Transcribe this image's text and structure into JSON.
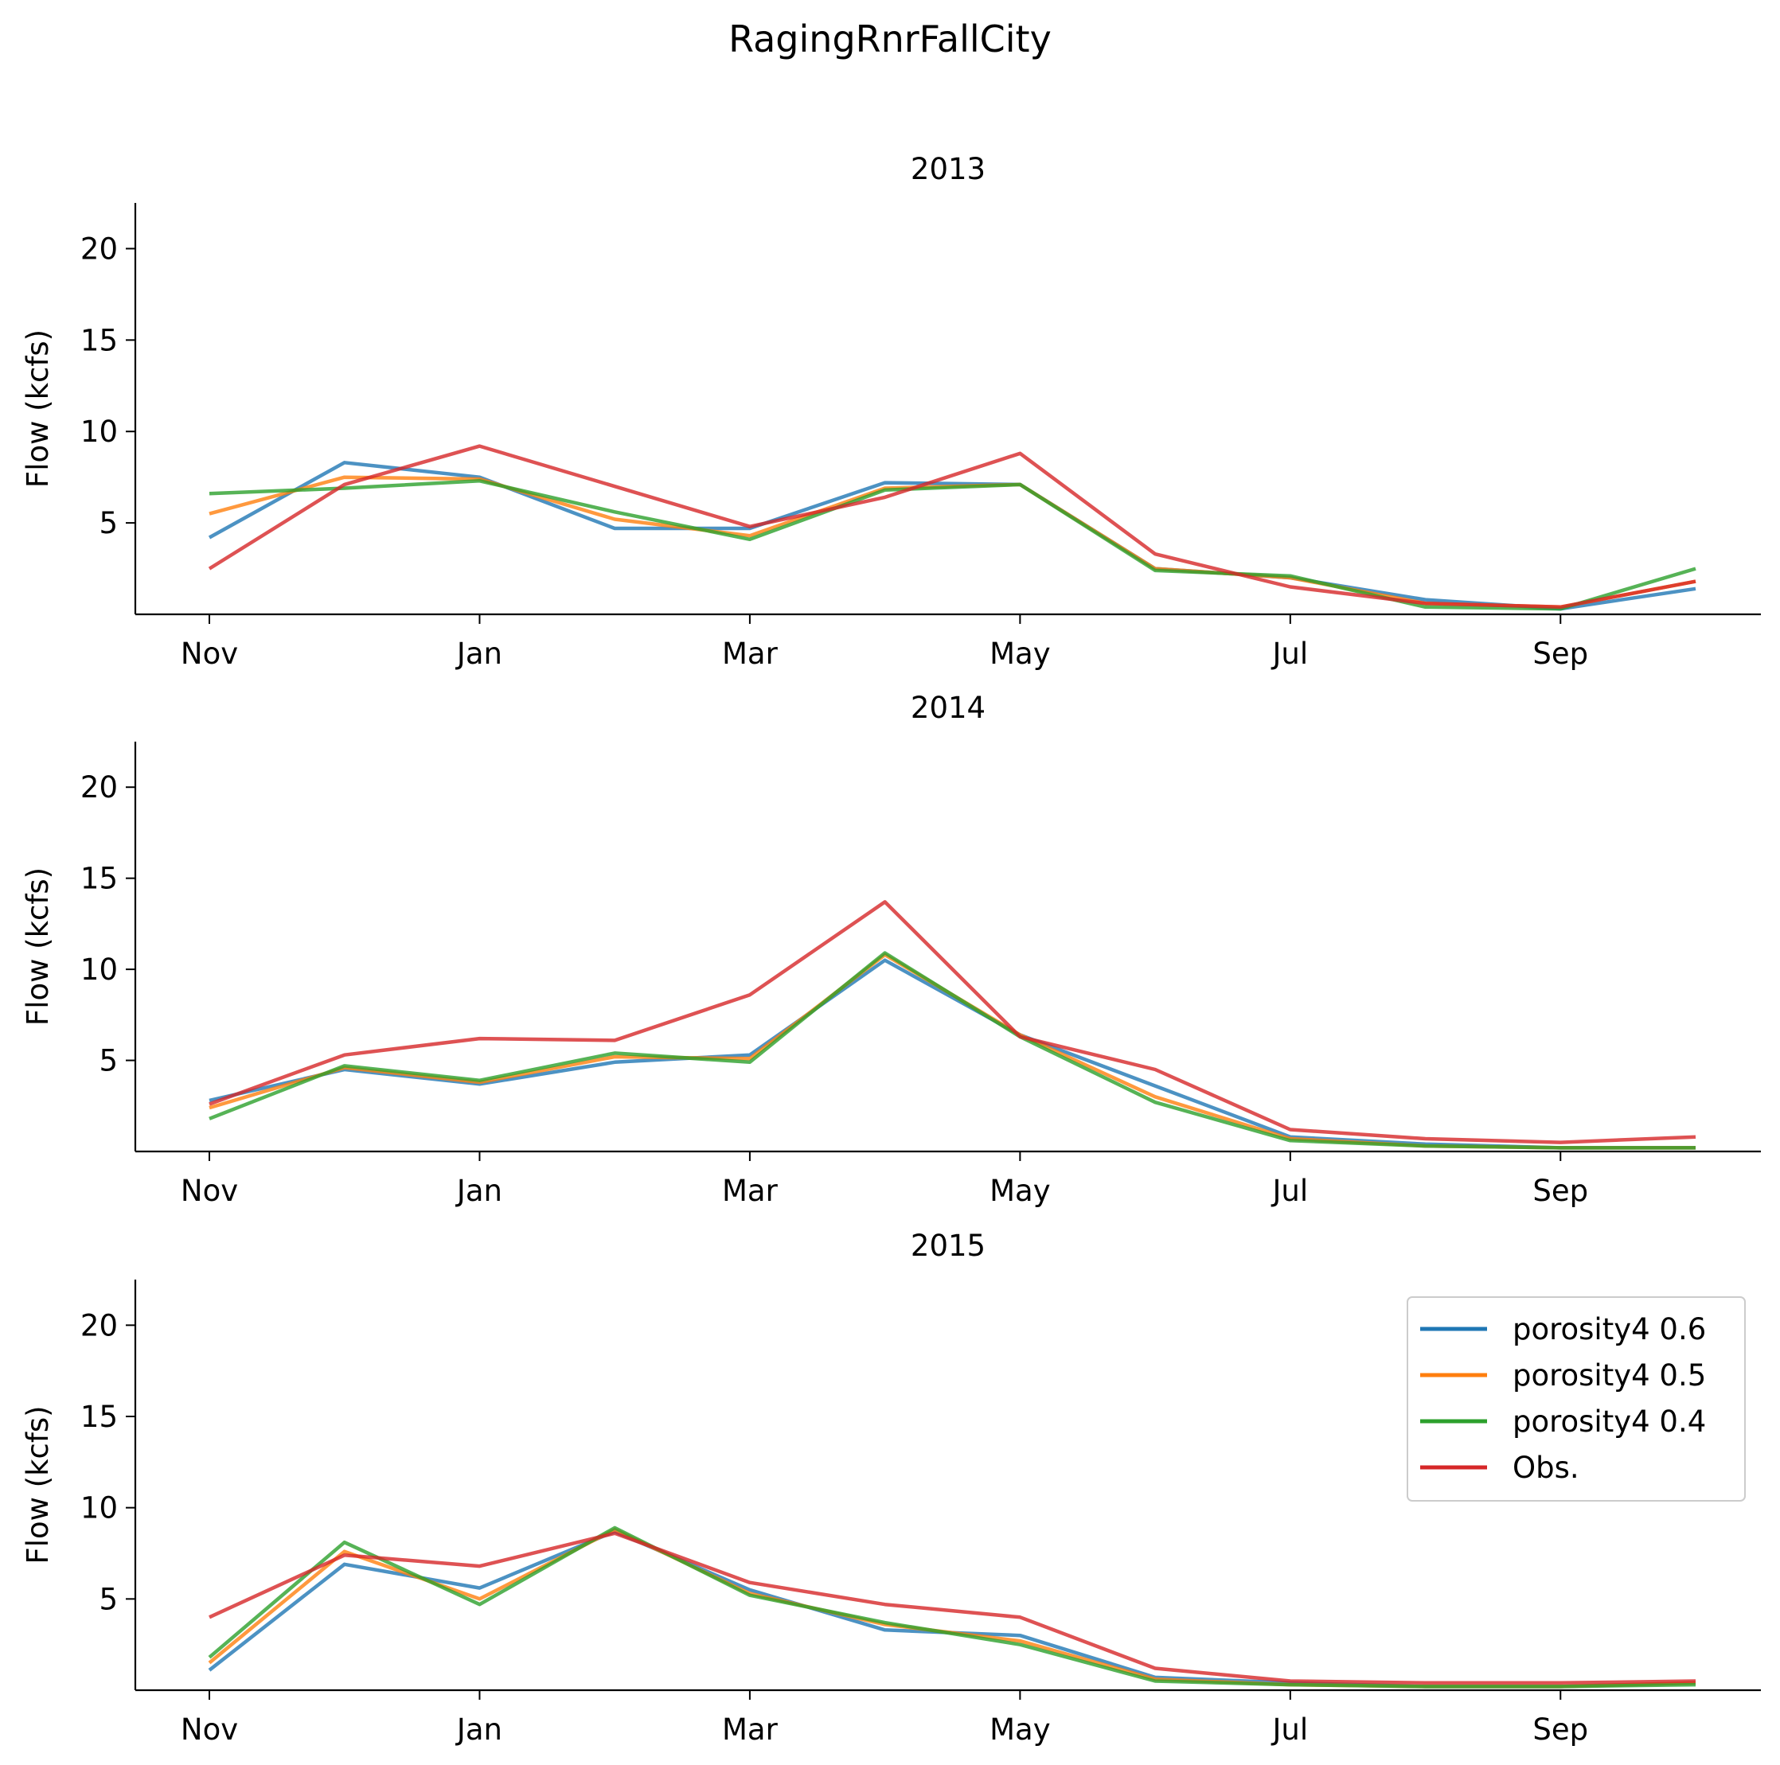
{
  "figure_title": "RagingRnrFallCity",
  "colors": {
    "porosity4 0.6": "#1f77b4",
    "porosity4 0.5": "#ff7f0e",
    "porosity4 0.4": "#2ca02c",
    "Obs.": "#d62728"
  },
  "chart_data": [
    {
      "type": "line",
      "title": "2013",
      "ylabel": "Flow (kcfs)",
      "xlabel": "",
      "x": [
        "Nov",
        "Dec",
        "Jan",
        "Feb",
        "Mar",
        "Apr",
        "May",
        "Jun",
        "Jul",
        "Aug",
        "Sep",
        "Oct"
      ],
      "xtick_labels": [
        "Nov",
        "Jan",
        "Mar",
        "May",
        "Jul",
        "Sep"
      ],
      "yticks": [
        5,
        10,
        15,
        20
      ],
      "ylim": [
        0,
        22.5
      ],
      "grid": false,
      "series": [
        {
          "name": "porosity4 0.6",
          "values": [
            4.2,
            8.3,
            7.5,
            4.7,
            4.7,
            7.2,
            7.1,
            2.5,
            2.0,
            0.8,
            0.3,
            1.4
          ]
        },
        {
          "name": "porosity4 0.5",
          "values": [
            5.5,
            7.5,
            7.4,
            5.2,
            4.3,
            6.9,
            7.1,
            2.5,
            2.0,
            0.6,
            0.4,
            1.8
          ]
        },
        {
          "name": "porosity4 0.4",
          "values": [
            6.6,
            6.9,
            7.3,
            5.6,
            4.1,
            6.8,
            7.1,
            2.4,
            2.1,
            0.4,
            0.3,
            2.5
          ]
        },
        {
          "name": "Obs.",
          "values": [
            2.5,
            7.1,
            9.2,
            7.0,
            4.8,
            6.4,
            8.8,
            3.3,
            1.5,
            0.6,
            0.4,
            1.8
          ]
        }
      ]
    },
    {
      "type": "line",
      "title": "2014",
      "ylabel": "Flow (kcfs)",
      "xlabel": "",
      "x": [
        "Nov",
        "Dec",
        "Jan",
        "Feb",
        "Mar",
        "Apr",
        "May",
        "Jun",
        "Jul",
        "Aug",
        "Sep",
        "Oct"
      ],
      "xtick_labels": [
        "Nov",
        "Jan",
        "Mar",
        "May",
        "Jul",
        "Sep"
      ],
      "yticks": [
        5,
        10,
        15,
        20
      ],
      "ylim": [
        0,
        22.5
      ],
      "grid": false,
      "series": [
        {
          "name": "porosity4 0.6",
          "values": [
            2.8,
            4.5,
            3.7,
            4.9,
            5.3,
            10.5,
            6.4,
            3.6,
            0.8,
            0.4,
            0.2,
            0.2
          ]
        },
        {
          "name": "porosity4 0.5",
          "values": [
            2.4,
            4.6,
            3.8,
            5.2,
            5.1,
            10.8,
            6.4,
            3.0,
            0.7,
            0.3,
            0.2,
            0.2
          ]
        },
        {
          "name": "porosity4 0.4",
          "values": [
            1.8,
            4.7,
            3.9,
            5.4,
            4.9,
            10.9,
            6.3,
            2.7,
            0.6,
            0.3,
            0.2,
            0.2
          ]
        },
        {
          "name": "Obs.",
          "values": [
            2.6,
            5.3,
            6.2,
            6.1,
            8.6,
            13.7,
            6.3,
            4.5,
            1.2,
            0.7,
            0.5,
            0.8
          ]
        }
      ]
    },
    {
      "type": "line",
      "title": "2015",
      "ylabel": "Flow (kcfs)",
      "xlabel": "",
      "x": [
        "Nov",
        "Dec",
        "Jan",
        "Feb",
        "Mar",
        "Apr",
        "May",
        "Jun",
        "Jul",
        "Aug",
        "Sep",
        "Oct"
      ],
      "xtick_labels": [
        "Nov",
        "Jan",
        "Mar",
        "May",
        "Jul",
        "Sep"
      ],
      "yticks": [
        5,
        10,
        15,
        20
      ],
      "ylim": [
        0,
        22.5
      ],
      "grid": false,
      "legend_position": "top-right",
      "series": [
        {
          "name": "porosity4 0.6",
          "values": [
            1.1,
            6.9,
            5.6,
            8.7,
            5.5,
            3.3,
            3.0,
            0.7,
            0.4,
            0.2,
            0.2,
            0.4
          ]
        },
        {
          "name": "porosity4 0.5",
          "values": [
            1.5,
            7.6,
            5.0,
            8.8,
            5.3,
            3.6,
            2.7,
            0.6,
            0.3,
            0.2,
            0.2,
            0.4
          ]
        },
        {
          "name": "porosity4 0.4",
          "values": [
            1.8,
            8.1,
            4.7,
            8.9,
            5.2,
            3.7,
            2.5,
            0.5,
            0.3,
            0.2,
            0.2,
            0.3
          ]
        },
        {
          "name": "Obs.",
          "values": [
            4.0,
            7.4,
            6.8,
            8.6,
            5.9,
            4.7,
            4.0,
            1.2,
            0.5,
            0.4,
            0.4,
            0.5
          ]
        }
      ]
    }
  ]
}
